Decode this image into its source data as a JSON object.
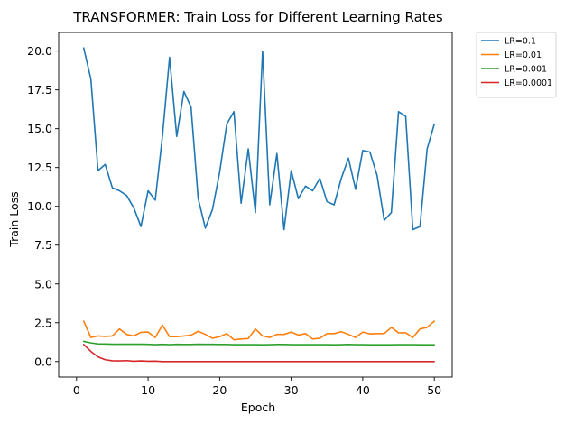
{
  "chart_data": {
    "type": "line",
    "title": "TRANSFORMER: Train Loss for Different Learning Rates",
    "xlabel": "Epoch",
    "ylabel": "Train Loss",
    "xlim": [
      -2.5,
      52.5
    ],
    "ylim": [
      -1.0,
      21.2
    ],
    "xticks": [
      0,
      10,
      20,
      30,
      40,
      50
    ],
    "xtick_labels": [
      "0",
      "10",
      "20",
      "30",
      "40",
      "50"
    ],
    "yticks": [
      0,
      2.5,
      5,
      7.5,
      10,
      12.5,
      15,
      17.5,
      20
    ],
    "ytick_labels": [
      "0.0",
      "2.5",
      "5.0",
      "7.5",
      "10.0",
      "12.5",
      "15.0",
      "17.5",
      "20.0"
    ],
    "grid": false,
    "legend_position": "outside-top-right",
    "x": [
      1,
      2,
      3,
      4,
      5,
      6,
      7,
      8,
      9,
      10,
      11,
      12,
      13,
      14,
      15,
      16,
      17,
      18,
      19,
      20,
      21,
      22,
      23,
      24,
      25,
      26,
      27,
      28,
      29,
      30,
      31,
      32,
      33,
      34,
      35,
      36,
      37,
      38,
      39,
      40,
      41,
      42,
      43,
      44,
      45,
      46,
      47,
      48,
      49,
      50
    ],
    "series": [
      {
        "name": "LR=0.1",
        "color": "#1f77b4",
        "values": [
          20.2,
          18.2,
          12.3,
          12.7,
          11.2,
          11.0,
          10.7,
          9.9,
          8.7,
          11.0,
          10.4,
          14.5,
          19.6,
          14.5,
          17.4,
          16.4,
          10.5,
          8.6,
          9.8,
          12.2,
          15.3,
          16.1,
          10.2,
          13.7,
          9.6,
          20.0,
          10.1,
          13.4,
          8.5,
          12.3,
          10.5,
          11.3,
          11.0,
          11.8,
          10.3,
          10.1,
          11.8,
          13.1,
          11.1,
          13.6,
          13.5,
          12.0,
          9.1,
          9.6,
          16.1,
          15.8,
          8.5,
          8.7,
          13.7,
          15.3
        ]
      },
      {
        "name": "LR=0.01",
        "color": "#ff7f0e",
        "values": [
          2.6,
          1.55,
          1.65,
          1.62,
          1.65,
          2.1,
          1.75,
          1.65,
          1.88,
          1.9,
          1.55,
          2.35,
          1.6,
          1.6,
          1.65,
          1.7,
          1.95,
          1.75,
          1.5,
          1.6,
          1.8,
          1.4,
          1.45,
          1.48,
          2.1,
          1.65,
          1.55,
          1.75,
          1.75,
          1.9,
          1.7,
          1.8,
          1.45,
          1.5,
          1.8,
          1.8,
          1.92,
          1.75,
          1.55,
          1.9,
          1.78,
          1.8,
          1.8,
          2.2,
          1.85,
          1.85,
          1.55,
          2.1,
          2.2,
          2.6
        ]
      },
      {
        "name": "LR=0.001",
        "color": "#2ca02c",
        "values": [
          1.3,
          1.2,
          1.14,
          1.13,
          1.12,
          1.12,
          1.12,
          1.12,
          1.12,
          1.11,
          1.09,
          1.11,
          1.09,
          1.11,
          1.1,
          1.1,
          1.12,
          1.11,
          1.11,
          1.1,
          1.1,
          1.09,
          1.09,
          1.09,
          1.09,
          1.08,
          1.09,
          1.1,
          1.1,
          1.09,
          1.09,
          1.09,
          1.09,
          1.09,
          1.09,
          1.08,
          1.09,
          1.1,
          1.09,
          1.09,
          1.08,
          1.08,
          1.08,
          1.08,
          1.09,
          1.09,
          1.09,
          1.08,
          1.08,
          1.08
        ]
      },
      {
        "name": "LR=0.0001",
        "color": "#d62728",
        "values": [
          1.1,
          0.65,
          0.3,
          0.12,
          0.05,
          0.04,
          0.06,
          0.02,
          0.04,
          0.02,
          0.03,
          0.0,
          0.0,
          0.0,
          0.0,
          0.0,
          0.0,
          0.0,
          0.0,
          0.0,
          0.0,
          0.0,
          0.0,
          0.0,
          0.0,
          0.0,
          0.0,
          0.0,
          0.0,
          0.0,
          0.0,
          0.0,
          0.0,
          0.0,
          0.0,
          0.0,
          0.0,
          0.0,
          0.0,
          0.0,
          0.0,
          0.0,
          0.0,
          0.0,
          0.0,
          0.0,
          0.0,
          0.0,
          0.0,
          0.0
        ]
      }
    ]
  }
}
